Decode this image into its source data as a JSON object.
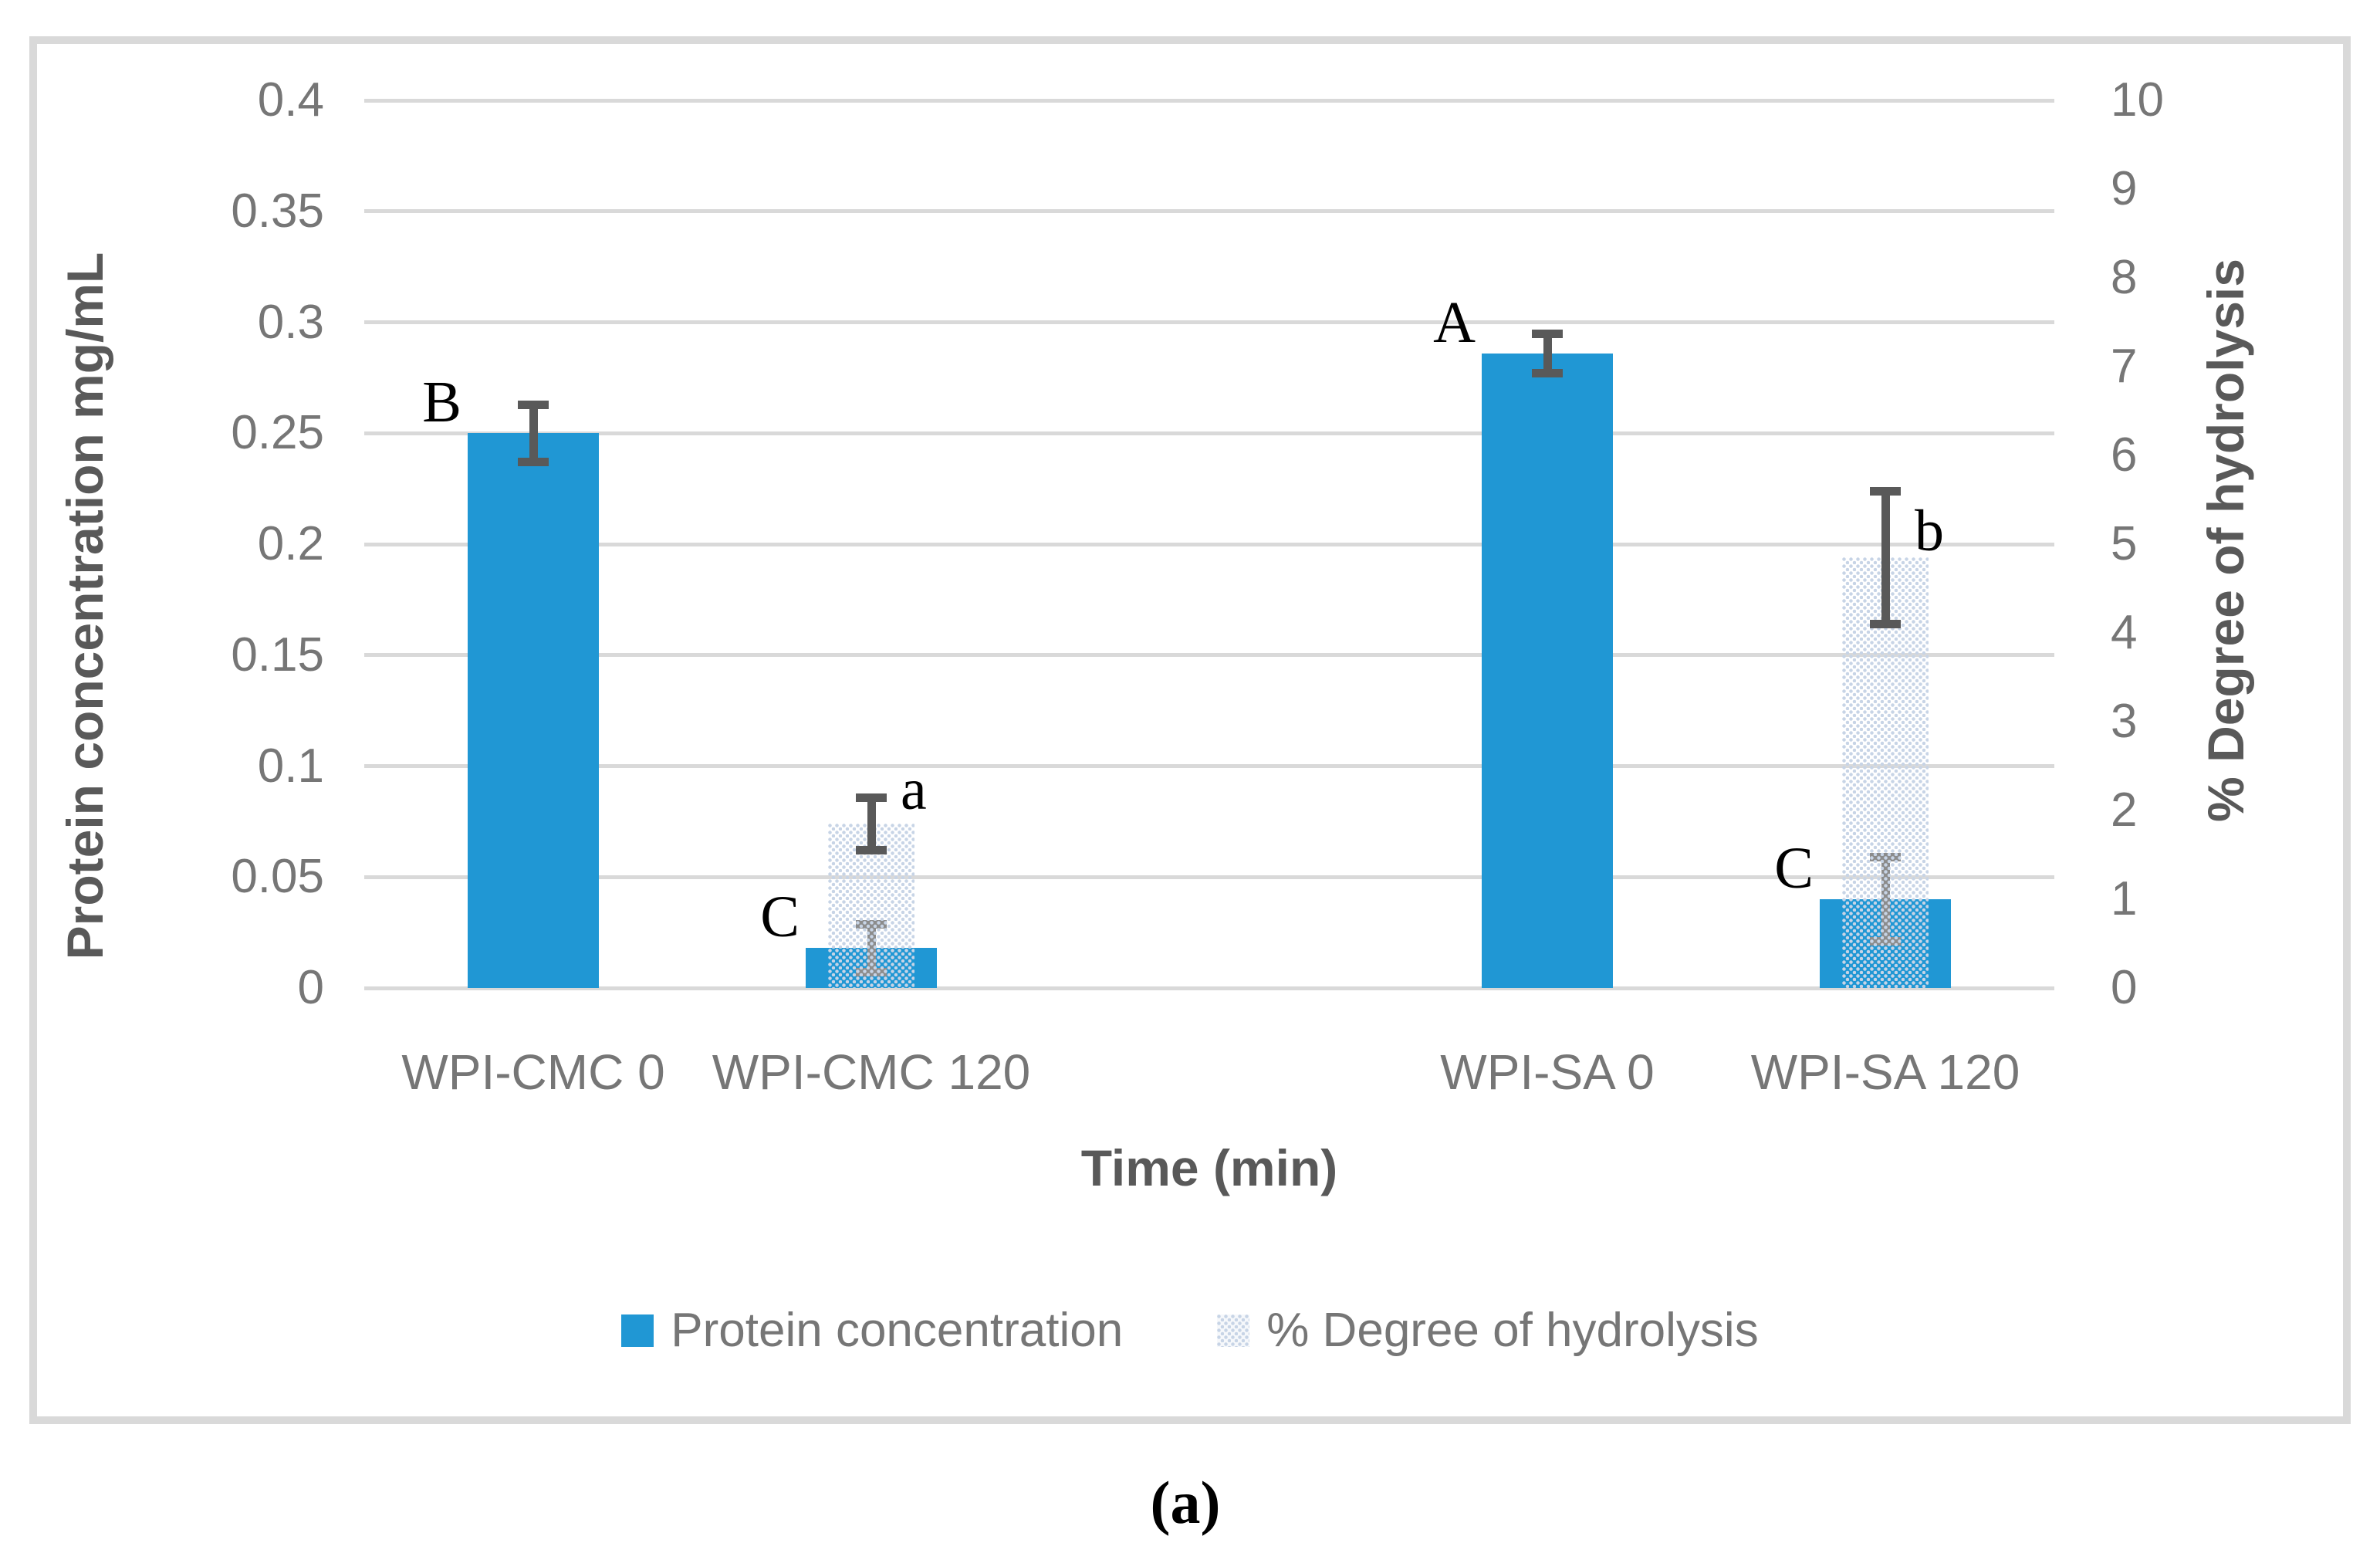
{
  "figure": {
    "caption": "(a)"
  },
  "chart_data": {
    "type": "bar",
    "title": "",
    "xlabel": "Time (min)",
    "ylabel_left": "Protein concentration mg/mL",
    "ylabel_right": "% Degree of hydrolysis",
    "grid": true,
    "legend_position": "bottom",
    "axis_left": {
      "min": 0,
      "max": 0.4,
      "step": 0.05,
      "ticks": [
        "0",
        "0.05",
        "0.1",
        "0.15",
        "0.2",
        "0.25",
        "0.3",
        "0.35",
        "0.4"
      ]
    },
    "axis_right": {
      "min": 0,
      "max": 10,
      "step": 1,
      "ticks": [
        "0",
        "1",
        "2",
        "3",
        "4",
        "5",
        "6",
        "7",
        "8",
        "9",
        "10"
      ]
    },
    "num_slots": 5,
    "categories": [
      {
        "label": "WPI-CMC 0",
        "slot": 0
      },
      {
        "label": "WPI-CMC 120",
        "slot": 1
      },
      {
        "label": "WPI-SA 0",
        "slot": 3
      },
      {
        "label": "WPI-SA 120",
        "slot": 4
      }
    ],
    "series": [
      {
        "name": "Protein concentration",
        "axis": "left",
        "fill": "solid",
        "points": [
          {
            "slot": 0,
            "value": 0.25,
            "error": 0.013,
            "letter": "B",
            "error_style": "dark"
          },
          {
            "slot": 1,
            "value": 0.018,
            "error": 0.011,
            "letter": "C",
            "error_style": "light"
          },
          {
            "slot": 3,
            "value": 0.286,
            "error": 0.009,
            "letter": "A",
            "error_style": "dark"
          },
          {
            "slot": 4,
            "value": 0.04,
            "error": 0.019,
            "letter": "C",
            "error_style": "light"
          }
        ]
      },
      {
        "name": "% Degree of hydrolysis",
        "axis": "right",
        "fill": "dotted",
        "points": [
          {
            "slot": 1,
            "value": 1.85,
            "error": 0.3,
            "letter": "a",
            "error_style": "dark"
          },
          {
            "slot": 4,
            "value": 4.85,
            "error": 0.75,
            "letter": "b",
            "error_style": "dark"
          }
        ]
      }
    ],
    "colors": {
      "protein": "#2097d4",
      "hydrolysis_dot": "#c7d4e6",
      "gridline": "#d9d9d9",
      "axis_text": "#767676",
      "axis_title": "#595959",
      "error_dark": "#595959",
      "error_light": "#8c8c8c"
    }
  }
}
